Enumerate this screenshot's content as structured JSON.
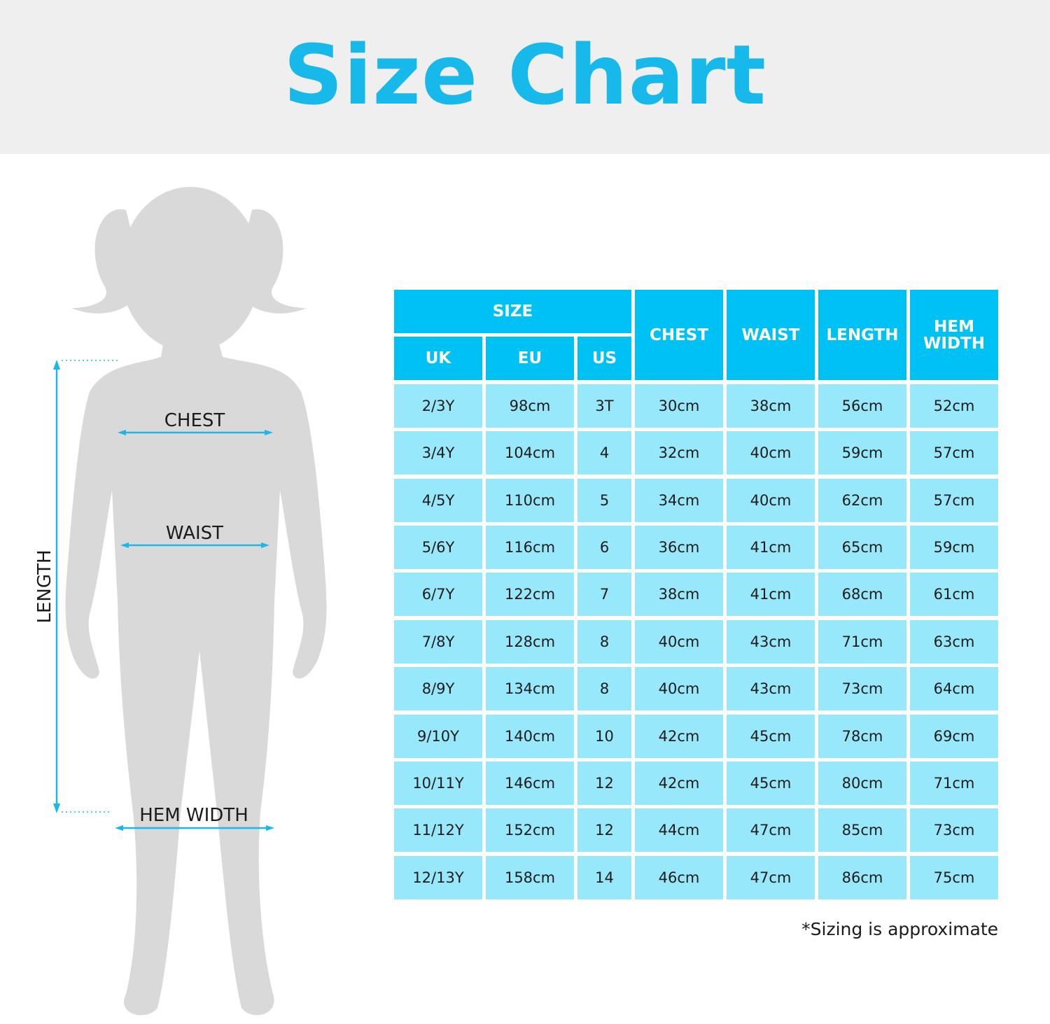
{
  "title": "Size Chart",
  "figure": {
    "labels": {
      "chest": "CHEST",
      "waist": "WAIST",
      "length": "LENGTH",
      "hem_width": "HEM WIDTH"
    },
    "silhouette_color": "#d9d9d9",
    "measure_color": "#1ab8e8"
  },
  "table": {
    "group_header": "SIZE",
    "sub_headers": [
      "UK",
      "EU",
      "US"
    ],
    "measure_headers": [
      "CHEST",
      "WAIST",
      "LENGTH",
      "HEM WIDTH"
    ],
    "rows": [
      [
        "2/3Y",
        "98cm",
        "3T",
        "30cm",
        "38cm",
        "56cm",
        "52cm"
      ],
      [
        "3/4Y",
        "104cm",
        "4",
        "32cm",
        "40cm",
        "59cm",
        "57cm"
      ],
      [
        "4/5Y",
        "110cm",
        "5",
        "34cm",
        "40cm",
        "62cm",
        "57cm"
      ],
      [
        "5/6Y",
        "116cm",
        "6",
        "36cm",
        "41cm",
        "65cm",
        "59cm"
      ],
      [
        "6/7Y",
        "122cm",
        "7",
        "38cm",
        "41cm",
        "68cm",
        "61cm"
      ],
      [
        "7/8Y",
        "128cm",
        "8",
        "40cm",
        "43cm",
        "71cm",
        "63cm"
      ],
      [
        "8/9Y",
        "134cm",
        "8",
        "40cm",
        "43cm",
        "73cm",
        "64cm"
      ],
      [
        "9/10Y",
        "140cm",
        "10",
        "42cm",
        "45cm",
        "78cm",
        "69cm"
      ],
      [
        "10/11Y",
        "146cm",
        "12",
        "42cm",
        "45cm",
        "80cm",
        "71cm"
      ],
      [
        "11/12Y",
        "152cm",
        "12",
        "44cm",
        "47cm",
        "85cm",
        "73cm"
      ],
      [
        "12/13Y",
        "158cm",
        "14",
        "46cm",
        "47cm",
        "86cm",
        "75cm"
      ]
    ],
    "header_color": "#00c1f3",
    "cell_color": "#98e8fb"
  },
  "note": "*Sizing is approximate"
}
